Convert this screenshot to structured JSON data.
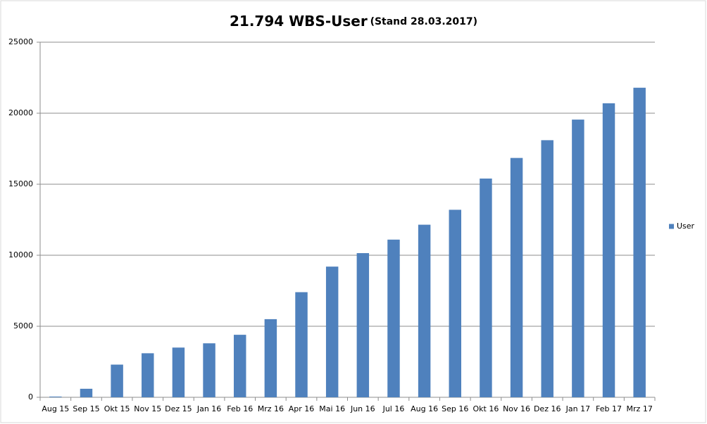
{
  "chart_data": {
    "type": "bar",
    "title": "21.794 WBS-User",
    "subtitle": "(Stand 28.03.2017)",
    "categories": [
      "Aug 15",
      "Sep 15",
      "Okt 15",
      "Nov 15",
      "Dez 15",
      "Jan 16",
      "Feb 16",
      "Mrz 16",
      "Apr 16",
      "Mai 16",
      "Jun 16",
      "Jul 16",
      "Aug 16",
      "Sep 16",
      "Okt 16",
      "Nov 16",
      "Dez 16",
      "Jan 17",
      "Feb 17",
      "Mrz 17"
    ],
    "series": [
      {
        "name": "User",
        "color": "#4f81bd",
        "values": [
          50,
          600,
          2300,
          3100,
          3500,
          3800,
          4400,
          5500,
          7400,
          9200,
          10150,
          11100,
          12150,
          13200,
          15400,
          16850,
          18100,
          19550,
          20700,
          21794
        ]
      }
    ],
    "ylim": [
      0,
      25000
    ],
    "yticks": [
      0,
      5000,
      10000,
      15000,
      20000,
      25000
    ],
    "grid": true,
    "legend": "right"
  }
}
